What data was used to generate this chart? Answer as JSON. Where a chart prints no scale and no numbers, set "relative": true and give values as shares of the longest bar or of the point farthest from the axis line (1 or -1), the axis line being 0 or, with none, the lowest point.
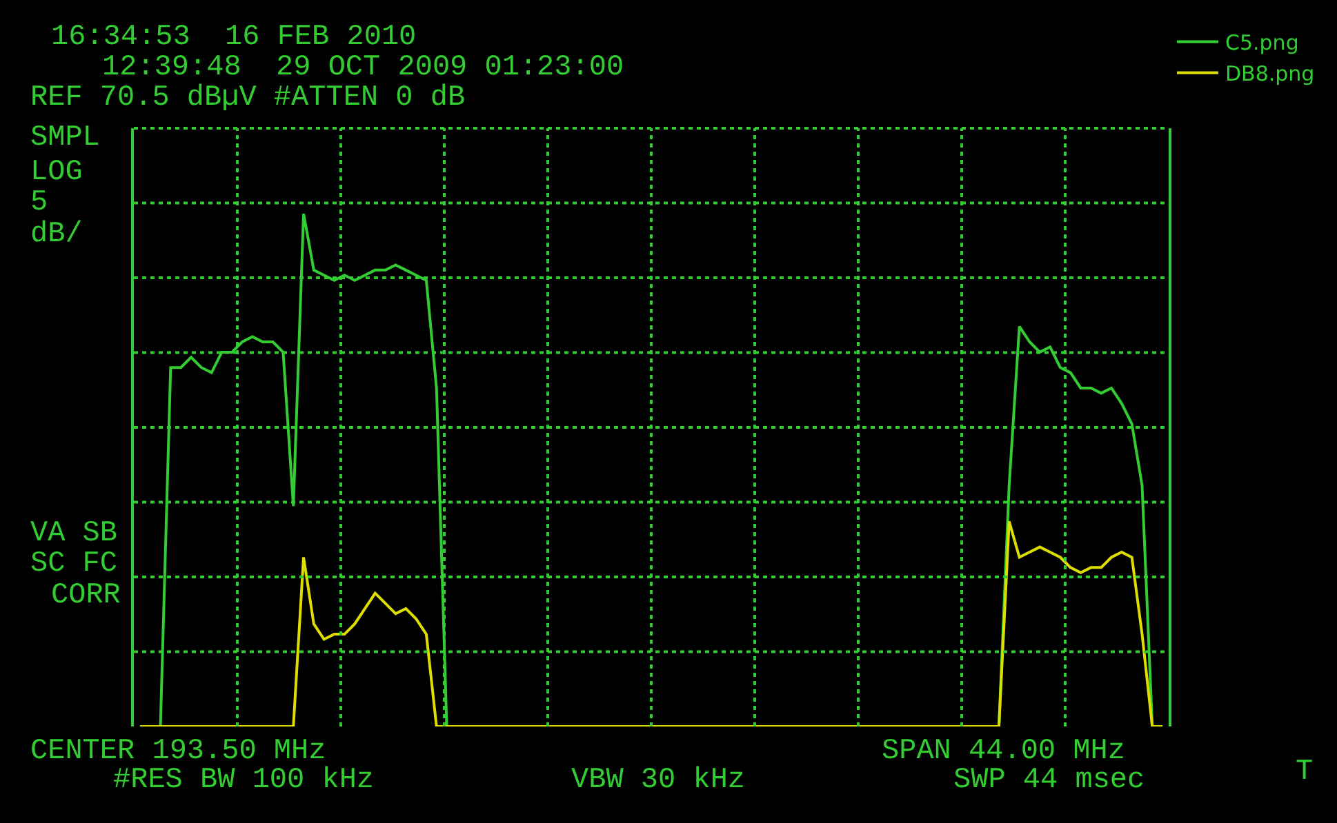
{
  "chart_data": {
    "type": "line",
    "title": "16:34:53  16 FEB 2010",
    "subtitle": "12:39:48  29 OCT 2009 01:23:00",
    "annotations": [
      "REF 70.5 dBµV #ATTEN 0 dB",
      "SMPL",
      "LOG",
      "5",
      "dB/",
      "VA SB",
      "SC FC",
      "CORR",
      "CENTER 193.50 MHz",
      "#RES BW 100 kHz",
      "VBW 30 kHz",
      "SPAN 44.00 MHz",
      "SWP 44 msec",
      "T"
    ],
    "categories": [
      null,
      null,
      null,
      null,
      null,
      null,
      null,
      null,
      null,
      null,
      null,
      null,
      null,
      null,
      null,
      null,
      null,
      null,
      null,
      null,
      null,
      null,
      null,
      null,
      null,
      null,
      null,
      null,
      null,
      null,
      null,
      null,
      null,
      null,
      null,
      null,
      null,
      null,
      null,
      null,
      null,
      null,
      null,
      null,
      null,
      null,
      null,
      null,
      null,
      null,
      null,
      null,
      null,
      null,
      null,
      null,
      null,
      null,
      null,
      null,
      null,
      null,
      null,
      null,
      null,
      null,
      null,
      null,
      null,
      null,
      null,
      null,
      null,
      null,
      null,
      null,
      null,
      null,
      null,
      null,
      null,
      null,
      null,
      null,
      null,
      null,
      null,
      null,
      null,
      null,
      null,
      null,
      null,
      null,
      null,
      null,
      null,
      null,
      null,
      null,
      null
    ],
    "relative": true,
    "grid": true,
    "legend": "top right",
    "tick_labels": false,
    "series": [
      {
        "name": "C5.png",
        "color": "#33cc33",
        "values": [
          0,
          0,
          0,
          0.7,
          0.7,
          0.72,
          0.7,
          0.69,
          0.73,
          0.73,
          0.75,
          0.76,
          0.75,
          0.75,
          0.73,
          0.43,
          1,
          0.89,
          0.88,
          0.87,
          0.88,
          0.87,
          0.88,
          0.89,
          0.89,
          0.9,
          0.89,
          0.88,
          0.87,
          0.66,
          0,
          0,
          0,
          0,
          0,
          0,
          0,
          0,
          0,
          0,
          0,
          0,
          0,
          0,
          0,
          0,
          0,
          0,
          0,
          0,
          0,
          0,
          0,
          0,
          0,
          0,
          0,
          0,
          0,
          0,
          0,
          0,
          0,
          0,
          0,
          0,
          0,
          0,
          0,
          0,
          0,
          0,
          0,
          0,
          0,
          0,
          0,
          0,
          0,
          0,
          0,
          0,
          0,
          0,
          0,
          0.47,
          0.78,
          0.75,
          0.73,
          0.74,
          0.7,
          0.69,
          0.66,
          0.66,
          0.65,
          0.66,
          0.63,
          0.59,
          0.47,
          0,
          0
        ]
      },
      {
        "name": "DB8.png",
        "color": "#dddd00",
        "values": [
          0,
          0,
          0,
          0,
          0,
          0,
          0,
          0,
          0,
          0,
          0,
          0,
          0,
          0,
          0,
          0,
          0.33,
          0.2,
          0.17,
          0.18,
          0.18,
          0.2,
          0.23,
          0.26,
          0.24,
          0.22,
          0.23,
          0.21,
          0.18,
          0,
          0,
          0,
          0,
          0,
          0,
          0,
          0,
          0,
          0,
          0,
          0,
          0,
          0,
          0,
          0,
          0,
          0,
          0,
          0,
          0,
          0,
          0,
          0,
          0,
          0,
          0,
          0,
          0,
          0,
          0,
          0,
          0,
          0,
          0,
          0,
          0,
          0,
          0,
          0,
          0,
          0,
          0,
          0,
          0,
          0,
          0,
          0,
          0,
          0,
          0,
          0,
          0,
          0,
          0,
          0,
          0.4,
          0.33,
          0.34,
          0.35,
          0.34,
          0.33,
          0.31,
          0.3,
          0.31,
          0.31,
          0.33,
          0.34,
          0.33,
          0.18,
          0,
          0
        ]
      }
    ]
  }
}
